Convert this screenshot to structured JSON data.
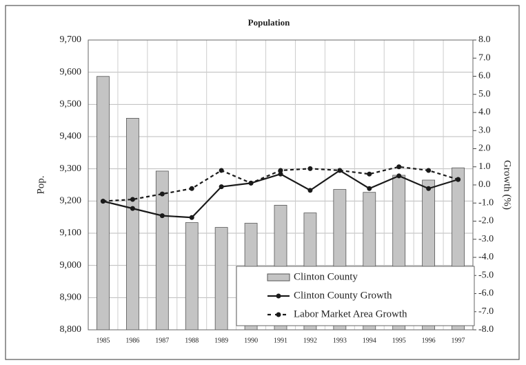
{
  "chart_data": {
    "type": "bar",
    "title": "Population",
    "ylabel": "Pop.",
    "y2label": "Growth (%)",
    "categories": [
      "1985",
      "1986",
      "1987",
      "1988",
      "1989",
      "1990",
      "1991",
      "1992",
      "1993",
      "1994",
      "1995",
      "1996",
      "1997"
    ],
    "series": [
      {
        "name": "Clinton County",
        "type": "bar",
        "color": "#c4c4c4",
        "axis": "y",
        "values": [
          9587,
          9457,
          9293,
          9133,
          9118,
          9131,
          9187,
          9163,
          9236,
          9227,
          9280,
          9265,
          9303
        ]
      },
      {
        "name": "Clinton County Growth",
        "type": "line",
        "color": "#1a1a1a",
        "axis": "y2",
        "dashed": false,
        "values": [
          -0.9,
          -1.3,
          -1.7,
          -1.8,
          -0.1,
          0.1,
          0.6,
          -0.3,
          0.8,
          -0.2,
          0.5,
          -0.2,
          0.3
        ]
      },
      {
        "name": "Labor Market Area Growth",
        "type": "line",
        "color": "#1a1a1a",
        "axis": "y2",
        "dashed": true,
        "values": [
          -0.9,
          -0.8,
          -0.5,
          -0.2,
          0.8,
          0.1,
          0.8,
          0.9,
          0.8,
          0.6,
          1.0,
          0.8,
          0.3
        ]
      }
    ],
    "ylim": [
      8800,
      9700
    ],
    "yticks": [
      {
        "value": 8800,
        "label": "8,800"
      },
      {
        "value": 8900,
        "label": "8,900"
      },
      {
        "value": 9000,
        "label": "9,000"
      },
      {
        "value": 9100,
        "label": "9,100"
      },
      {
        "value": 9200,
        "label": "9,200"
      },
      {
        "value": 9300,
        "label": "9,300"
      },
      {
        "value": 9400,
        "label": "9,400"
      },
      {
        "value": 9500,
        "label": "9,500"
      },
      {
        "value": 9600,
        "label": "9,600"
      },
      {
        "value": 9700,
        "label": "9,700"
      }
    ],
    "y2lim": [
      -8,
      8
    ],
    "y2ticks": [
      {
        "value": -8,
        "label": "-8.0"
      },
      {
        "value": -7,
        "label": "-7.0"
      },
      {
        "value": -6,
        "label": "-6.0"
      },
      {
        "value": -5,
        "label": "-5.0"
      },
      {
        "value": -4,
        "label": "-4.0"
      },
      {
        "value": -3,
        "label": "-3.0"
      },
      {
        "value": -2,
        "label": "-2.0"
      },
      {
        "value": -1,
        "label": "-1.0"
      },
      {
        "value": 0,
        "label": "0.0"
      },
      {
        "value": 1,
        "label": "1.0"
      },
      {
        "value": 2,
        "label": "2.0"
      },
      {
        "value": 3,
        "label": "3.0"
      },
      {
        "value": 4,
        "label": "4.0"
      },
      {
        "value": 5,
        "label": "5.0"
      },
      {
        "value": 6,
        "label": "6.0"
      },
      {
        "value": 7,
        "label": "7.0"
      },
      {
        "value": 8,
        "label": "8.0"
      }
    ],
    "grid": true,
    "legend": "lower right"
  }
}
